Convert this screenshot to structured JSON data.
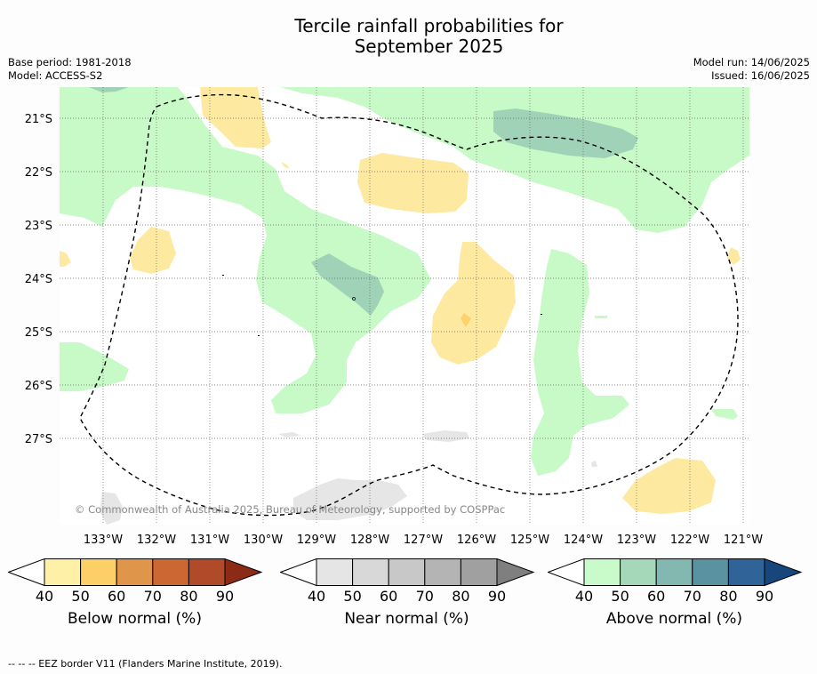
{
  "title_line1": "Tercile rainfall probabilities for",
  "title_line2": "September 2025",
  "meta": {
    "base_period": "Base period: 1981-2018",
    "model": "Model: ACCESS-S2",
    "model_run": "Model run: 14/06/2025",
    "issued": "Issued: 16/06/2025"
  },
  "map": {
    "lat_labels": [
      "21°S",
      "22°S",
      "23°S",
      "24°S",
      "25°S",
      "26°S",
      "27°S"
    ],
    "lon_labels": [
      "133°W",
      "132°W",
      "131°W",
      "130°W",
      "129°W",
      "128°W",
      "127°W",
      "126°W",
      "125°W",
      "124°W",
      "123°W",
      "122°W",
      "121°W"
    ],
    "copyright": "© Commonwealth of Australia 2025, Bureau of Meteorology, supported by COSPPac",
    "colors": {
      "above_50": "#c8fac8",
      "above_60": "#a0d2b8",
      "below_50": "#fde9a0",
      "below_60": "#fdd26a",
      "near_50": "#e6e6e6"
    }
  },
  "colorbars": {
    "ticks": [
      "40",
      "50",
      "60",
      "70",
      "80",
      "90"
    ],
    "below": {
      "label": "Below normal (%)",
      "colors": [
        "#ffffff",
        "#fff0a8",
        "#fdd067",
        "#e0964a",
        "#cc6633",
        "#b04a28",
        "#8b2a15"
      ]
    },
    "near": {
      "label": "Near normal (%)",
      "colors": [
        "#ffffff",
        "#e5e5e5",
        "#d8d8d8",
        "#c8c8c8",
        "#b4b4b4",
        "#a0a0a0",
        "#7f7f7f"
      ]
    },
    "above": {
      "label": "Above normal (%)",
      "colors": [
        "#ffffff",
        "#c9fbca",
        "#a5d8b9",
        "#83b8b1",
        "#5a92a2",
        "#306398",
        "#17467d"
      ]
    }
  },
  "footer": "--  --  -- EEZ border V11 (Flanders Marine Institute, 2019)."
}
